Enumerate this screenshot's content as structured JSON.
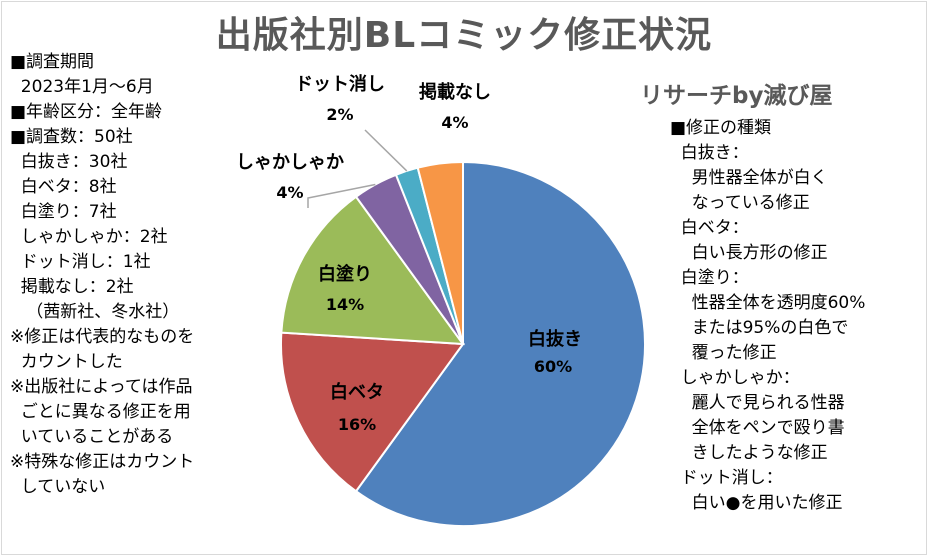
{
  "title": "出版社別BLコミック修正状況",
  "credit": "リサーチby滅び屋",
  "left_notes": [
    "■調査期間",
    "  2023年1月～6月",
    "■年齢区分：全年齢",
    "■調査数：50社",
    "  白抜き：30社",
    "  白ベタ：8社",
    "  白塗り：7社",
    "  しゃかしゃか：2社",
    "  ドット消し：1社",
    "  掲載なし：2社",
    "   （茜新社、冬水社）",
    "※修正は代表的なものを",
    "  カウントした",
    "※出版社によっては作品",
    "  ごとに異なる修正を用",
    "  いていることがある",
    "※特殊な修正はカウント",
    "  していない"
  ],
  "right_notes": [
    "■修正の種類",
    "  白抜き：",
    "    男性器全体が白く",
    "    なっている修正",
    "  白ベタ：",
    "    白い長方形の修正",
    "  白塗り：",
    "    性器全体を透明度60%",
    "    または95%の白色で",
    "    覆った修正",
    "  しゃかしゃか：",
    "    麗人で見られる性器",
    "    全体をペンで殴り書",
    "    きしたような修正",
    "  ドット消し：",
    "    白い●を用いた修正"
  ],
  "chart_data": {
    "type": "pie",
    "title": "出版社別BLコミック修正状況",
    "start_angle_deg": 0,
    "direction": "clockwise",
    "slices": [
      {
        "label": "白抜き",
        "value": 60,
        "pct_label": "60%",
        "color": "#4f81bd",
        "label_color": "#000000"
      },
      {
        "label": "白ベタ",
        "value": 16,
        "pct_label": "16%",
        "color": "#c0504d",
        "label_color": "#000000"
      },
      {
        "label": "白塗り",
        "value": 14,
        "pct_label": "14%",
        "color": "#9bbb59",
        "label_color": "#000000"
      },
      {
        "label": "しゃかしゃか",
        "value": 4,
        "pct_label": "4%",
        "color": "#8064a2",
        "label_color": "#000000"
      },
      {
        "label": "ドット消し",
        "value": 2,
        "pct_label": "2%",
        "color": "#4bacc6",
        "label_color": "#000000"
      },
      {
        "label": "掲載なし",
        "value": 4,
        "pct_label": "4%",
        "color": "#f79646",
        "label_color": "#000000"
      }
    ]
  }
}
